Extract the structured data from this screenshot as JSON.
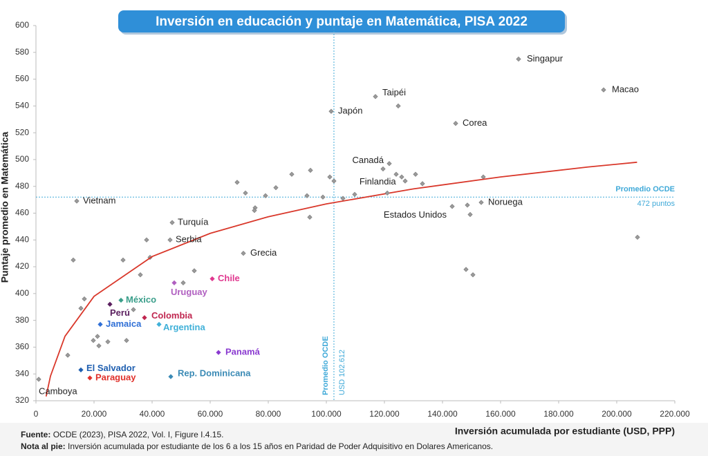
{
  "chart_data": {
    "type": "scatter",
    "title": "Inversión en educación y puntaje en Matemática, PISA 2022",
    "x_label": "Inversión acumulada por estudiante (USD, PPP)",
    "y_label": "Puntaje promedio en Matemática",
    "xlim": [
      0,
      220000
    ],
    "xticks": [
      0,
      {
        "value": 20000,
        "label": "20.000"
      },
      {
        "value": 40000,
        "label": "40.000"
      },
      {
        "value": 60000,
        "label": "60.000"
      },
      {
        "value": 80000,
        "label": "80.000"
      },
      {
        "value": 100000,
        "label": "100.000"
      },
      {
        "value": 120000,
        "label": "120.000"
      },
      {
        "value": 140000,
        "label": "140.000"
      },
      {
        "value": 160000,
        "label": "160.000"
      },
      {
        "value": 180000,
        "label": "180.000"
      },
      {
        "value": 200000,
        "label": "200.000"
      },
      {
        "value": 220000,
        "label": "220.000"
      }
    ],
    "ylim": [
      320,
      600
    ],
    "yticks": [
      320,
      340,
      360,
      380,
      400,
      420,
      440,
      460,
      480,
      500,
      520,
      540,
      560,
      580,
      600
    ],
    "grid": false,
    "points": [
      {
        "label": "Singapur",
        "x": 166190,
        "y": 575,
        "color": "#9a9a9a",
        "label_color": "#222222"
      },
      {
        "label": "Macao",
        "x": 195476,
        "y": 552,
        "color": "#9a9a9a",
        "label_color": "#222222"
      },
      {
        "label": "Taipéi",
        "x": 116905,
        "y": 547,
        "color": "#9a9a9a",
        "label_color": "#222222"
      },
      {
        "label": "Japón",
        "x": 101667,
        "y": 536,
        "color": "#9a9a9a",
        "label_color": "#222222"
      },
      {
        "label": "Corea",
        "x": 144524,
        "y": 527,
        "color": "#9a9a9a",
        "label_color": "#222222"
      },
      {
        "label": "Canadá",
        "x": 121667,
        "y": 497,
        "color": "#9a9a9a",
        "label_color": "#222222"
      },
      {
        "label": "Finlandia",
        "x": 121000,
        "y": 475,
        "color": "#9a9a9a",
        "label_color": "#222222"
      },
      {
        "label": "Vietnam",
        "x": 14048,
        "y": 469,
        "color": "#9a9a9a",
        "label_color": "#222222"
      },
      {
        "label": "Noruega",
        "x": 153333,
        "y": 468,
        "color": "#9a9a9a",
        "label_color": "#222222"
      },
      {
        "label": "Estados Unidos",
        "x": 143333,
        "y": 465,
        "color": "#9a9a9a",
        "label_color": "#222222"
      },
      {
        "label": "Turquía",
        "x": 46905,
        "y": 453,
        "color": "#9a9a9a",
        "label_color": "#222222"
      },
      {
        "label": "Serbia",
        "x": 46190,
        "y": 440,
        "color": "#9a9a9a",
        "label_color": "#222222"
      },
      {
        "label": "Grecia",
        "x": 71429,
        "y": 430,
        "color": "#9a9a9a",
        "label_color": "#222222"
      },
      {
        "label": "Chile",
        "x": 60714,
        "y": 411,
        "color": "#e0388f",
        "label_color": "#e0388f"
      },
      {
        "label": "Uruguay",
        "x": 47619,
        "y": 408,
        "color": "#b05fc0",
        "label_color": "#b05fc0"
      },
      {
        "label": "México",
        "x": 29286,
        "y": 395,
        "color": "#3a9e8a",
        "label_color": "#3a9e8a"
      },
      {
        "label": "Perú",
        "x": 25476,
        "y": 392,
        "color": "#5a1e5e",
        "label_color": "#5a1e5e"
      },
      {
        "label": "Colombia",
        "x": 37381,
        "y": 382,
        "color": "#c0264f",
        "label_color": "#c0264f"
      },
      {
        "label": "Jamaica",
        "x": 22143,
        "y": 377,
        "color": "#2f6fd6",
        "label_color": "#2f6fd6"
      },
      {
        "label": "Argentina",
        "x": 42381,
        "y": 377,
        "color": "#3fb0d8",
        "label_color": "#3fb0d8"
      },
      {
        "label": "Panamá",
        "x": 62857,
        "y": 356,
        "color": "#8a3ad0",
        "label_color": "#8a3ad0"
      },
      {
        "label": "Rep. Dominicana",
        "x": 46429,
        "y": 338,
        "color": "#3a8ab5",
        "label_color": "#3a8ab5"
      },
      {
        "label": "El Salvador",
        "x": 15476,
        "y": 343,
        "color": "#1f5fb0",
        "label_color": "#1f5fb0"
      },
      {
        "label": "Paraguay",
        "x": 18571,
        "y": 337,
        "color": "#e0302a",
        "label_color": "#e0302a"
      },
      {
        "label": "Camboya",
        "x": 952,
        "y": 336,
        "color": "#9a9a9a",
        "label_color": "#222222"
      }
    ],
    "unlabeled": {
      "color": "#9a9a9a",
      "x": [
        12857,
        15476,
        16667,
        10952,
        19762,
        21190,
        21667,
        24762,
        30000,
        31190,
        33571,
        35952,
        38095,
        39286,
        50714,
        54524,
        69286,
        72143,
        75476,
        75238,
        79048,
        82619,
        88095,
        93333,
        94524,
        94286,
        98810,
        101190,
        102619,
        105714,
        109762,
        119524,
        124048,
        124762,
        125952,
        127143,
        130714,
        133095,
        148095,
        150476,
        154048,
        207143,
        148571,
        149524
      ],
      "y": [
        425,
        389,
        396,
        354,
        365,
        368,
        361,
        364,
        425,
        365,
        388,
        414,
        440,
        427,
        408,
        417,
        483,
        475,
        464,
        462,
        473,
        479,
        489,
        473,
        492,
        457,
        472,
        487,
        484,
        471,
        474,
        493,
        489,
        540,
        487,
        484,
        489,
        482,
        418,
        414,
        487,
        442,
        466,
        459
      ]
    },
    "trend": {
      "color": "#d9372a",
      "x": [
        3500,
        5000,
        10000,
        20000,
        40000,
        60000,
        80000,
        100000,
        130000,
        160000,
        190000,
        207000
      ],
      "y": [
        323.2,
        338.4,
        368.1,
        397.9,
        427.6,
        444.9,
        457.3,
        466.9,
        478.1,
        487.0,
        494.4,
        498.0
      ]
    },
    "oecd_average": {
      "color": "#3fa9d8",
      "x": 102612,
      "x_labels": [
        "Promedio OCDE",
        "USD 102.612"
      ],
      "y": 472,
      "y_labels": [
        "Promedio OCDE",
        "472 puntos"
      ]
    }
  },
  "footer": {
    "source_label": "Fuente:",
    "source": "OCDE (2023), PISA 2022, Vol. I, Figure I.4.15.",
    "note_label": "Nota al pie:",
    "note": "Inversión acumulada por estudiante de los 6 a los 15 años en Paridad de Poder Adquisitivo en Dolares Americanos."
  }
}
